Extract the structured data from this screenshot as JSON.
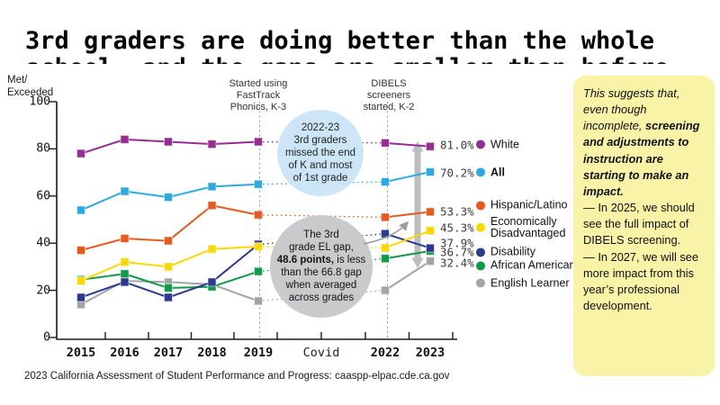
{
  "title_line1": "3rd graders are doing better than the whole",
  "title_line2_clipped": "school, and the gaps are smaller than before",
  "annotations": {
    "fasttrack": "Started using\nFastTrack\nPhonics, K-3",
    "dibels": "DIBELS\nscreeners\nstarted, K-2",
    "blue_circle": "2022-23\n3rd graders\nmissed the end\nof K and most\nof 1st grade",
    "gray_circle_pre": "The 3rd\ngrade EL gap,\n",
    "gray_circle_bold": "48.6 points,",
    "gray_circle_post": " is less\nthan the 66.8 gap\nwhen averaged\nacross grades"
  },
  "note": {
    "italic_lead": "This suggests that, even though incomplete, ",
    "bold_italic": "screening and adjustments to instruction are starting to make an impact.",
    "bullet1": "— In 2025, we should see the full impact of DIBELS screening.",
    "bullet2": "— In 2027, we will see more impact from this year’s professional development.",
    "bg_color": "#f9f3a8"
  },
  "source": "2023 California Assessment of Student Performance and Progress: caaspp-elpac.cde.ca.gov",
  "chart_data": {
    "type": "line",
    "title": "3rd graders are doing better than the whole (CAASPP % Met/Exceeded)",
    "ylabel": "Met/\nExceeded",
    "ylim": [
      0,
      100
    ],
    "y_ticks": [
      "0",
      "20",
      "40",
      "60",
      "80",
      "100"
    ],
    "x_labels": [
      "2015",
      "2016",
      "2017",
      "2018",
      "2019",
      "Covid",
      "2022",
      "2023"
    ],
    "x": [
      "2015",
      "2016",
      "2017",
      "2018",
      "2019",
      "2022",
      "2023"
    ],
    "covid_gap_between": [
      "2019",
      "2022"
    ],
    "grid": "dotted vertical guides at FastTrack (2019) and DIBELS (2022) events",
    "legend_position": "right",
    "series": [
      {
        "name": "White",
        "color": "#972d93",
        "values": [
          78,
          84,
          83,
          82,
          83,
          82.5,
          81.0
        ],
        "final_label": "81.0%"
      },
      {
        "name": "All",
        "color": "#29abe2",
        "values": [
          54,
          62,
          59.5,
          64,
          65,
          66,
          70.2
        ],
        "final_label": "70.2%",
        "bold": true
      },
      {
        "name": "Hispanic/Latino",
        "color": "#e8591d",
        "values": [
          37,
          42,
          41,
          56,
          52,
          51,
          53.3
        ],
        "final_label": "53.3%"
      },
      {
        "name": "Economically Disadvantaged",
        "color": "#fdd700",
        "values": [
          24,
          32,
          30,
          37.5,
          38.5,
          38,
          45.3
        ],
        "final_label": "45.3%"
      },
      {
        "name": "Disability",
        "color": "#2b3990",
        "values": [
          17,
          23.5,
          17,
          23.5,
          39.5,
          44,
          37.9
        ],
        "final_label": "37.9%"
      },
      {
        "name": "African American",
        "color": "#0f9b48",
        "values": [
          24.5,
          27,
          21,
          21.5,
          28,
          33.5,
          36.7
        ],
        "final_label": "36.7%"
      },
      {
        "name": "English Learner",
        "color": "#a2a4a7",
        "values": [
          14,
          24,
          23.5,
          22.5,
          15.5,
          20,
          32.4
        ],
        "final_label": "32.4%"
      }
    ],
    "gap_arrow": {
      "description": "gray double arrow showing White vs English Learner gap in 2023",
      "top_value": 81.0,
      "bottom_value": 32.4,
      "gap": "48.6 points"
    }
  },
  "colors": {
    "blue_circle_bg": "#cde6f7",
    "gray_circle_bg": "#c9cacb",
    "arrow_gray": "#b7b9bb",
    "guide_gray": "#9c9c9c"
  }
}
